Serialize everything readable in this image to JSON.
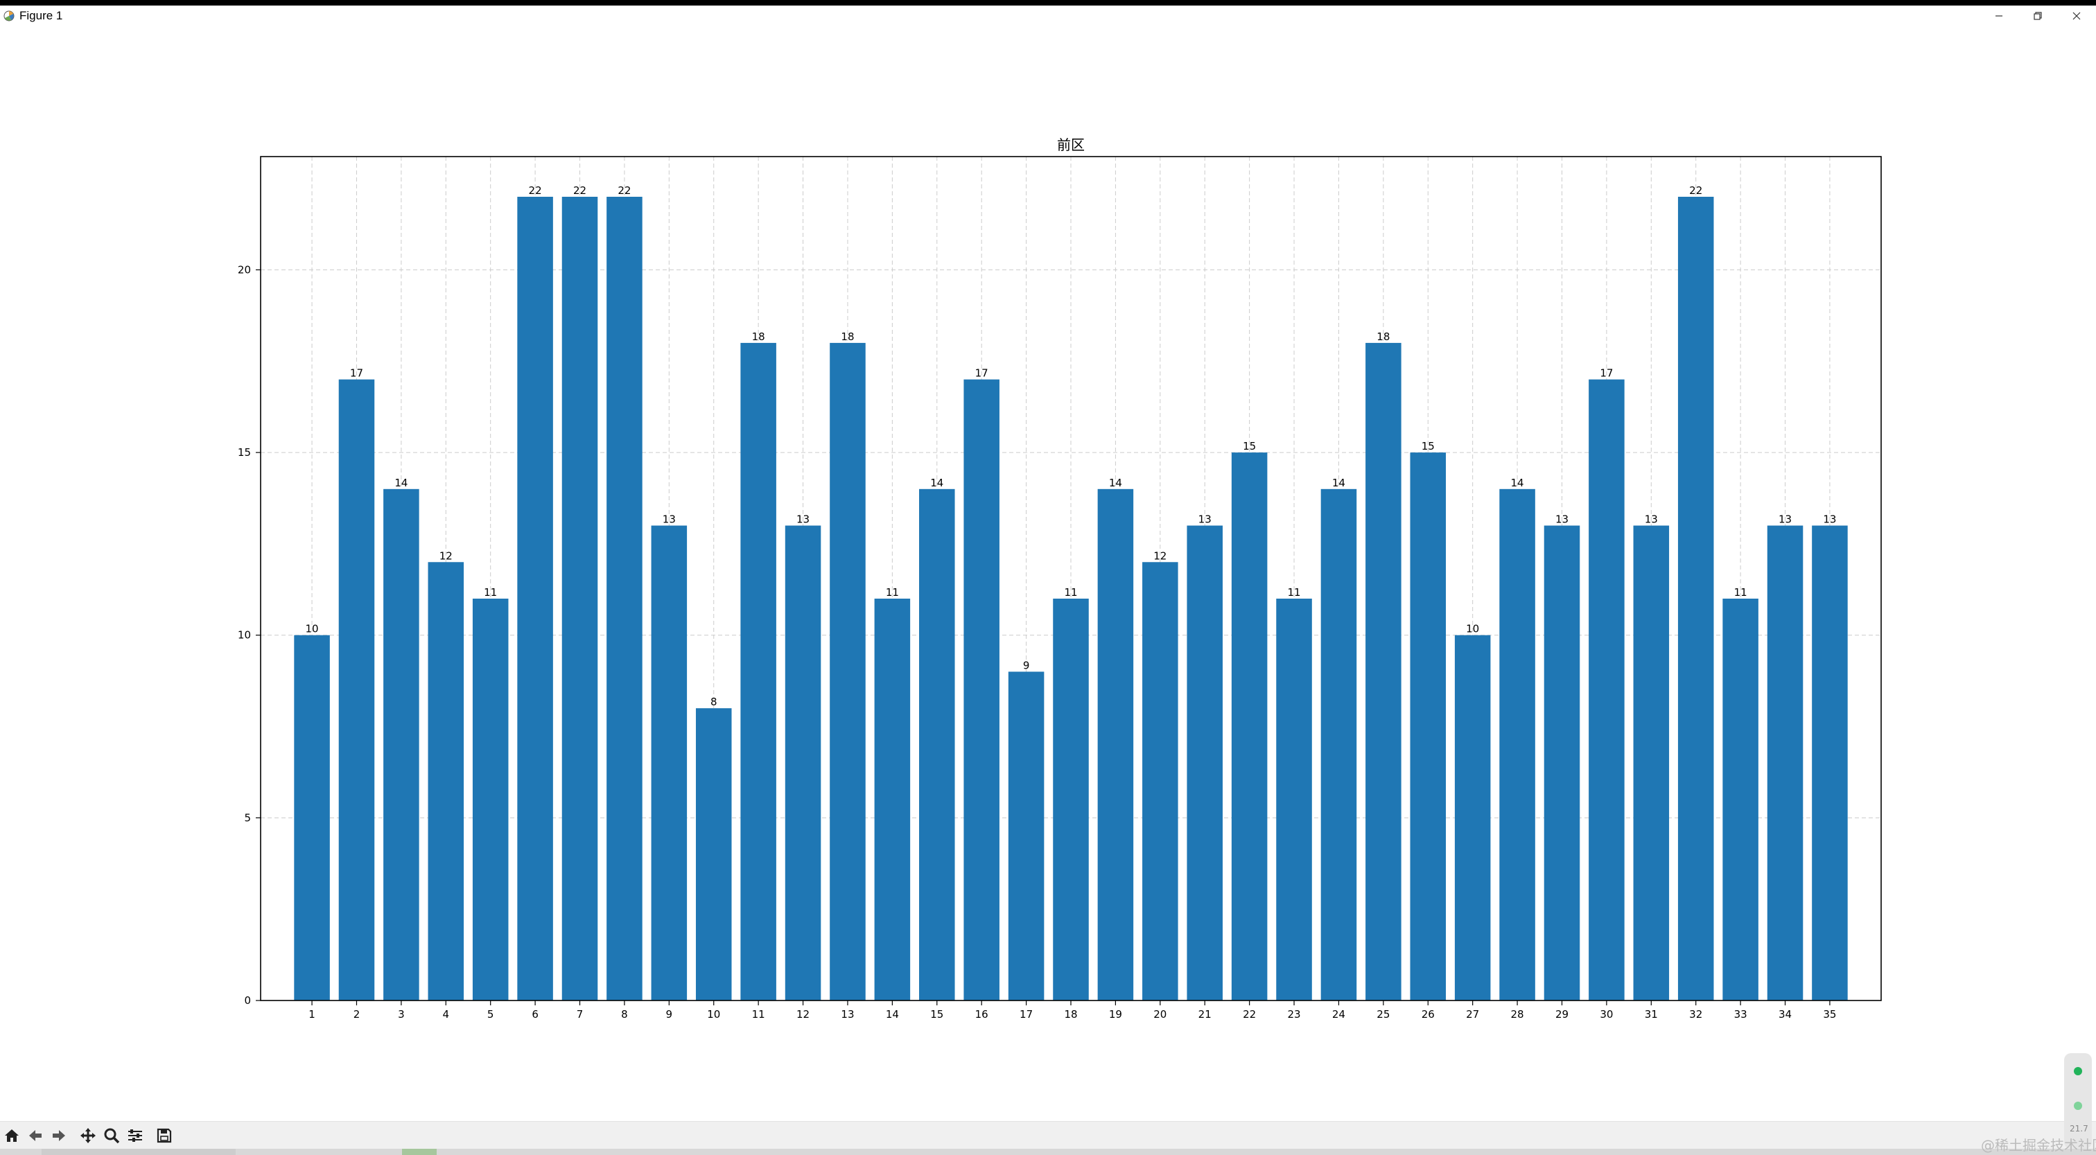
{
  "window": {
    "title": "Figure 1"
  },
  "toolbar": {
    "buttons": [
      {
        "name": "home-button",
        "icon": "home-icon"
      },
      {
        "name": "back-button",
        "icon": "arrow-left-icon"
      },
      {
        "name": "forward-button",
        "icon": "arrow-right-icon"
      },
      {
        "name": "pan-button",
        "icon": "move-icon"
      },
      {
        "name": "zoom-button",
        "icon": "zoom-icon"
      },
      {
        "name": "configure-subplots-button",
        "icon": "sliders-icon"
      },
      {
        "name": "save-button",
        "icon": "save-icon"
      }
    ]
  },
  "overlay": {
    "side_label": "21.7",
    "watermark": "@稀土掘金技术社区"
  },
  "colors": {
    "bar": "#1f77b4",
    "grid": "#cccccc",
    "axis": "#000000"
  },
  "chart_data": {
    "type": "bar",
    "title": "前区",
    "xlabel": "",
    "ylabel": "",
    "categories": [
      "1",
      "2",
      "3",
      "4",
      "5",
      "6",
      "7",
      "8",
      "9",
      "10",
      "11",
      "12",
      "13",
      "14",
      "15",
      "16",
      "17",
      "18",
      "19",
      "20",
      "21",
      "22",
      "23",
      "24",
      "25",
      "26",
      "27",
      "28",
      "29",
      "30",
      "31",
      "32",
      "33",
      "34",
      "35"
    ],
    "values": [
      10,
      17,
      14,
      12,
      11,
      22,
      22,
      22,
      13,
      8,
      18,
      13,
      18,
      11,
      14,
      17,
      9,
      11,
      14,
      12,
      13,
      15,
      11,
      14,
      18,
      15,
      10,
      14,
      13,
      17,
      13,
      22,
      11,
      13,
      13
    ],
    "ylim": [
      0,
      23.1
    ],
    "yticks": [
      0,
      5,
      10,
      15,
      20
    ],
    "grid": true,
    "grid_style": "dashed",
    "data_labels": true,
    "legend": "none"
  }
}
